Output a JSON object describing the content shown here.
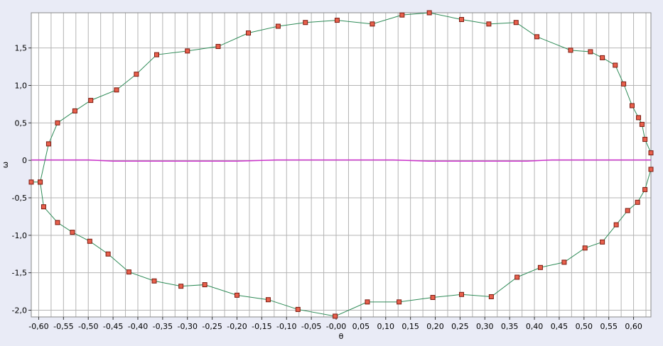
{
  "chart_data": {
    "type": "scatter",
    "title": "",
    "xlabel": "θ",
    "ylabel": "ω",
    "xlim": [
      -0.615,
      0.635
    ],
    "ylim": [
      -2.09,
      1.97
    ],
    "x_ticks": [
      -0.6,
      -0.55,
      -0.5,
      -0.45,
      -0.4,
      -0.35,
      -0.3,
      -0.25,
      -0.2,
      -0.15,
      -0.1,
      -0.05,
      0.0,
      0.05,
      0.1,
      0.15,
      0.2,
      0.25,
      0.3,
      0.35,
      0.4,
      0.45,
      0.5,
      0.55,
      0.6
    ],
    "x_tick_labels": [
      "-0,60",
      "-0,55",
      "-0,50",
      "-0,45",
      "-0,40",
      "-0,35",
      "-0,30",
      "-0,25",
      "-0,20",
      "-0,15",
      "-0,10",
      "-0,05",
      "-0,00",
      "0,05",
      "0,10",
      "0,15",
      "0,20",
      "0,25",
      "0,30",
      "0,35",
      "0,40",
      "0,45",
      "0,50",
      "0,55",
      "0,60"
    ],
    "y_ticks": [
      -2.0,
      -1.5,
      -1.0,
      -0.5,
      0,
      0.5,
      1.0,
      1.5
    ],
    "y_tick_labels": [
      "-2,0",
      "-1,5",
      "-1,0",
      "-0,5",
      "0",
      "0,5",
      "1,0",
      "1,5"
    ],
    "grid": true,
    "colors": {
      "trajectory_line": "#2e8b57",
      "marker_fill": "#e8604c",
      "marker_edge": "#7a1a10",
      "baseline": "#cc33cc",
      "grid": "#b4b4b4",
      "plot_bg": "#ffffff",
      "frame_bg": "#e9ebf6"
    },
    "series": [
      {
        "marker": "square",
        "x": [
          0.635,
          0.623,
          0.617,
          0.61,
          0.597,
          0.58,
          0.563,
          0.537,
          0.513,
          0.473,
          0.405,
          0.363,
          0.308,
          0.253,
          0.188,
          0.133,
          0.073,
          0.002,
          -0.062,
          -0.117,
          -0.177,
          -0.238,
          -0.3,
          -0.362,
          -0.403,
          -0.443,
          -0.495,
          -0.527,
          -0.562,
          -0.58,
          -0.597,
          -0.615
        ],
        "y": [
          0.1,
          0.28,
          0.48,
          0.57,
          0.73,
          1.02,
          1.27,
          1.37,
          1.45,
          1.47,
          1.65,
          1.84,
          1.82,
          1.88,
          1.97,
          1.94,
          1.82,
          1.87,
          1.84,
          1.79,
          1.7,
          1.52,
          1.46,
          1.41,
          1.15,
          0.94,
          0.8,
          0.66,
          0.5,
          0.22,
          -0.29,
          -0.29
        ],
        "closed": false
      },
      {
        "marker": "square",
        "x": [
          -0.597,
          -0.59,
          -0.562,
          -0.532,
          -0.497,
          -0.46,
          -0.418,
          -0.367,
          -0.313,
          -0.265,
          -0.2,
          -0.137,
          -0.077,
          -0.002,
          0.063,
          0.127,
          0.195,
          0.253,
          0.313,
          0.365,
          0.412,
          0.46,
          0.502,
          0.537,
          0.565,
          0.588,
          0.608,
          0.623,
          0.635
        ],
        "y": [
          -0.29,
          -0.62,
          -0.83,
          -0.96,
          -1.08,
          -1.25,
          -1.49,
          -1.61,
          -1.68,
          -1.66,
          -1.8,
          -1.86,
          -1.99,
          -2.08,
          -1.89,
          -1.89,
          -1.83,
          -1.79,
          -1.82,
          -1.56,
          -1.43,
          -1.36,
          -1.17,
          -1.09,
          -0.86,
          -0.67,
          -0.56,
          -0.39,
          -0.12
        ]
      }
    ],
    "baseline": {
      "x": [
        -0.615,
        -0.5,
        -0.45,
        -0.2,
        -0.12,
        0.115,
        0.186,
        0.385,
        0.435,
        0.635
      ],
      "y": [
        0.005,
        0.005,
        -0.01,
        -0.01,
        0.005,
        0.005,
        -0.01,
        -0.01,
        0.005,
        0.005
      ]
    }
  }
}
